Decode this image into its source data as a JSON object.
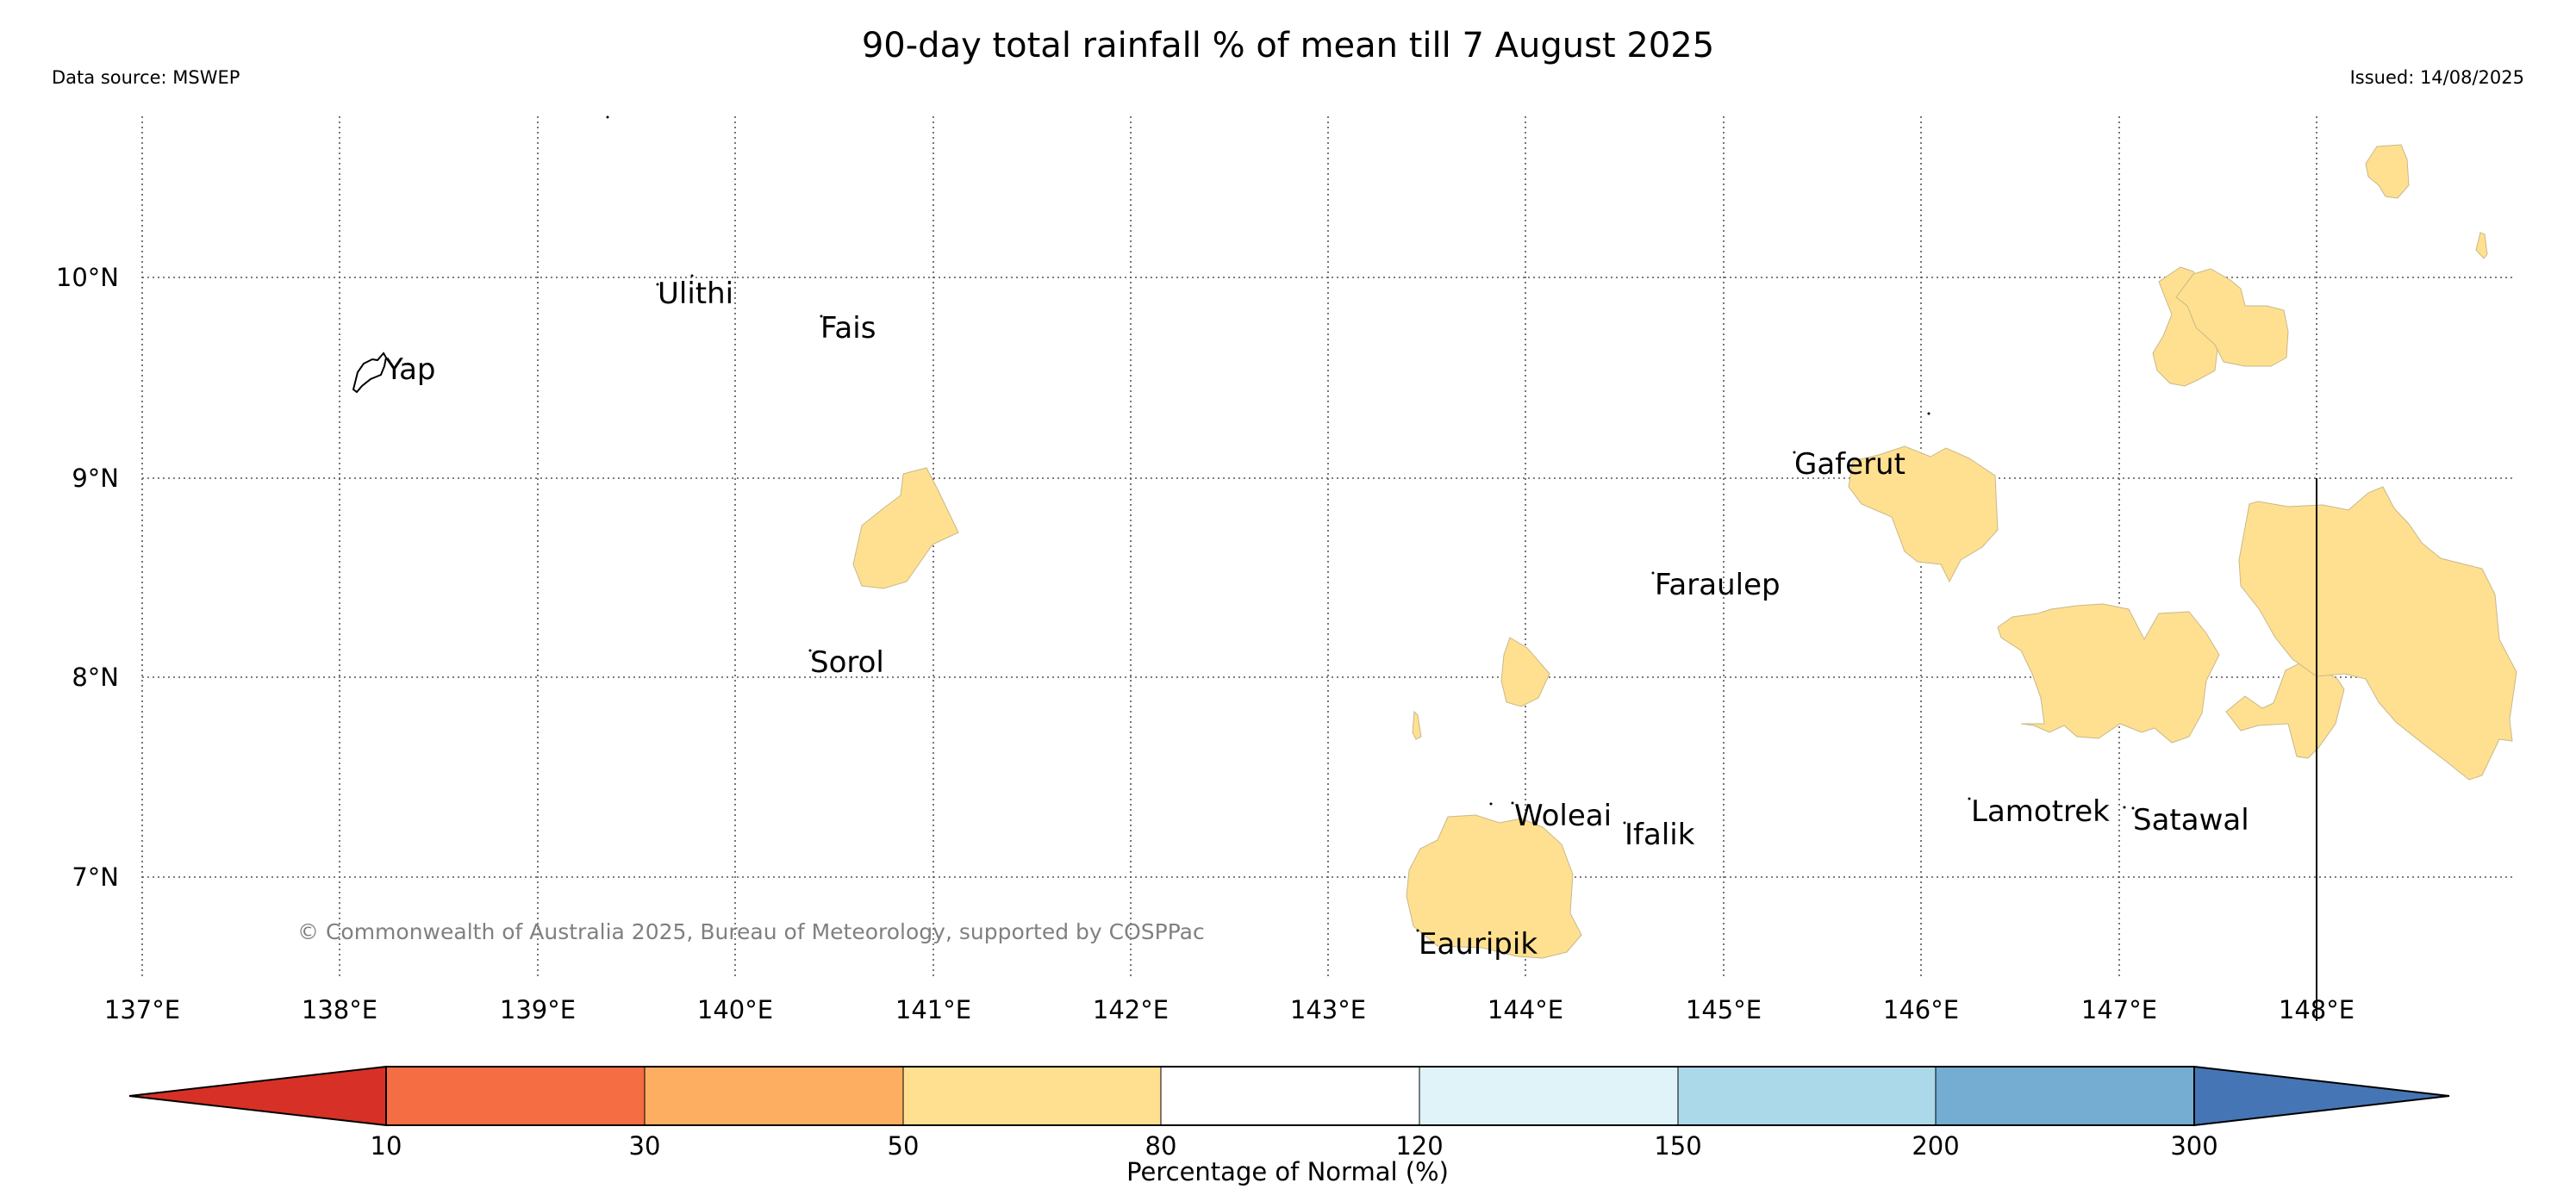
{
  "title": "90-day total rainfall % of mean till 7 August 2025",
  "data_source": "Data source: MSWEP",
  "issued": "Issued: 14/08/2025",
  "copyright": "© Commonwealth of Australia 2025, Bureau of Meteorology, supported by COSPPac",
  "map": {
    "lon_range": [
      137,
      149
    ],
    "lat_range": [
      6.5,
      10.8
    ],
    "lon_ticks": [
      "137°E",
      "138°E",
      "139°E",
      "140°E",
      "141°E",
      "142°E",
      "143°E",
      "144°E",
      "145°E",
      "146°E",
      "147°E",
      "148°E"
    ],
    "lat_ticks": [
      "10°N",
      "9°N",
      "8°N",
      "7°N"
    ],
    "gridlines": true,
    "places": [
      {
        "name": "Yap",
        "lon": 138.1,
        "lat": 9.55
      },
      {
        "name": "Ulithi",
        "lon": 139.7,
        "lat": 9.9
      },
      {
        "name": "Fais",
        "lon": 140.5,
        "lat": 9.76
      },
      {
        "name": "Sorol",
        "lon": 140.4,
        "lat": 8.1
      },
      {
        "name": "Gaferut",
        "lon": 145.4,
        "lat": 9.07
      },
      {
        "name": "Faraulep",
        "lon": 144.7,
        "lat": 8.45
      },
      {
        "name": "Woleai",
        "lon": 143.9,
        "lat": 7.33
      },
      {
        "name": "Ifalik",
        "lon": 144.5,
        "lat": 7.25
      },
      {
        "name": "Lamotrek",
        "lon": 146.3,
        "lat": 7.3
      },
      {
        "name": "Satawal",
        "lon": 147.0,
        "lat": 7.35
      },
      {
        "name": "Eauripik",
        "lon": 143.5,
        "lat": 6.65
      }
    ],
    "rainfall_category_shown": "50-80",
    "rainfall_color": "#fee090"
  },
  "colorbar": {
    "label": "Percentage of Normal (%)",
    "ticks": [
      "10",
      "30",
      "50",
      "80",
      "120",
      "150",
      "200",
      "300"
    ],
    "colors": [
      "#d73027",
      "#f46d43",
      "#fdae61",
      "#fee090",
      "#ffffff",
      "#e0f3f8",
      "#abd9e9",
      "#74add1",
      "#4575b4"
    ]
  }
}
